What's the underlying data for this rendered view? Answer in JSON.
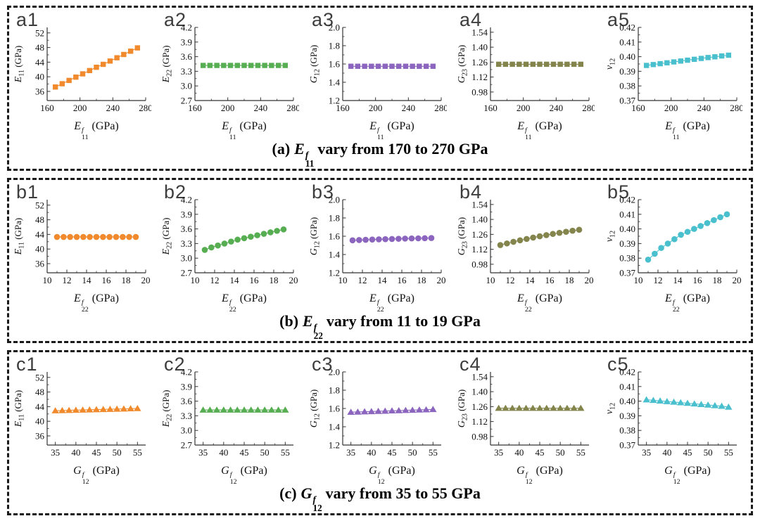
{
  "chart_data": [
    {
      "panel": "a",
      "type": "scatter",
      "marker": "square",
      "caption": {
        "prefix": "(a)",
        "var_base": "E",
        "var_sup": "f",
        "var_sub": "11",
        "rest": "vary from 170 to 270 GPa"
      },
      "xlabel": {
        "base": "E",
        "sup": "f",
        "sub": "11",
        "unit": "(GPa)"
      },
      "xlim": [
        160,
        280
      ],
      "xticks": [
        160,
        200,
        240,
        280
      ],
      "xtick_decimals": 0,
      "x": [
        170,
        178.3,
        186.7,
        195,
        203.3,
        211.7,
        220,
        228.3,
        236.7,
        245,
        253.3,
        261.7,
        270
      ],
      "subplots": [
        {
          "tag": "a1",
          "ylabel": {
            "base": "E",
            "sub": "11",
            "unit": "(GPa)"
          },
          "color": "#F08A2C",
          "ylim": [
            33.5,
            53.5
          ],
          "yticks": [
            36,
            40,
            44,
            48,
            52
          ],
          "ytick_decimals": 0,
          "y": [
            37.2,
            38.1,
            39.0,
            39.9,
            40.8,
            41.7,
            42.6,
            43.4,
            44.3,
            45.2,
            46.1,
            47.0,
            47.9
          ]
        },
        {
          "tag": "a2",
          "ylabel": {
            "base": "E",
            "sub": "22",
            "unit": "(GPa)"
          },
          "color": "#57AE52",
          "ylim": [
            2.7,
            4.2
          ],
          "yticks": [
            2.7,
            3.0,
            3.3,
            3.6,
            3.9,
            4.2
          ],
          "ytick_decimals": 1,
          "y": [
            3.42,
            3.42,
            3.42,
            3.42,
            3.42,
            3.42,
            3.42,
            3.42,
            3.42,
            3.42,
            3.42,
            3.42,
            3.42
          ]
        },
        {
          "tag": "a3",
          "ylabel": {
            "base": "G",
            "sub": "12",
            "unit": "(GPa)"
          },
          "color": "#8B65BE",
          "ylim": [
            1.2,
            2.0
          ],
          "yticks": [
            1.2,
            1.4,
            1.6,
            1.8,
            2.0
          ],
          "ytick_decimals": 1,
          "y": [
            1.575,
            1.575,
            1.575,
            1.575,
            1.575,
            1.575,
            1.575,
            1.575,
            1.575,
            1.575,
            1.575,
            1.575,
            1.575
          ]
        },
        {
          "tag": "a4",
          "ylabel": {
            "base": "G",
            "sub": "23",
            "unit": "(GPa)"
          },
          "color": "#84854D",
          "ylim": [
            0.9,
            1.585
          ],
          "yticks": [
            0.98,
            1.12,
            1.26,
            1.4,
            1.54
          ],
          "ytick_decimals": 2,
          "y": [
            1.24,
            1.24,
            1.24,
            1.24,
            1.24,
            1.24,
            1.24,
            1.24,
            1.24,
            1.24,
            1.24,
            1.24,
            1.24
          ]
        },
        {
          "tag": "a5",
          "ylabel": {
            "base": "v",
            "sub": "12",
            "unit": ""
          },
          "color": "#4AC0CE",
          "ylim": [
            0.37,
            0.42
          ],
          "yticks": [
            0.37,
            0.38,
            0.39,
            0.4,
            0.41,
            0.42
          ],
          "ytick_decimals": 2,
          "y": [
            0.394,
            0.3946,
            0.3952,
            0.3958,
            0.3964,
            0.397,
            0.3976,
            0.3982,
            0.3988,
            0.3994,
            0.3999,
            0.4005,
            0.401
          ]
        }
      ]
    },
    {
      "panel": "b",
      "type": "scatter",
      "marker": "circle",
      "caption": {
        "prefix": "(b)",
        "var_base": "E",
        "var_sup": "f",
        "var_sub": "22",
        "rest": "vary from 11 to 19 GPa"
      },
      "xlabel": {
        "base": "E",
        "sup": "f",
        "sub": "22",
        "unit": "(GPa)"
      },
      "xlim": [
        10,
        20
      ],
      "xticks": [
        10,
        12,
        14,
        16,
        18,
        20
      ],
      "xtick_decimals": 0,
      "x": [
        11,
        11.67,
        12.33,
        13,
        13.67,
        14.33,
        15,
        15.67,
        16.33,
        17,
        17.67,
        18.33,
        19
      ],
      "subplots": [
        {
          "tag": "b1",
          "ylabel": {
            "base": "E",
            "sub": "11",
            "unit": "(GPa)"
          },
          "color": "#F08A2C",
          "ylim": [
            33.5,
            53.5
          ],
          "yticks": [
            36,
            40,
            44,
            48,
            52
          ],
          "ytick_decimals": 0,
          "y": [
            43.3,
            43.3,
            43.3,
            43.3,
            43.3,
            43.3,
            43.3,
            43.3,
            43.3,
            43.3,
            43.3,
            43.3,
            43.3
          ]
        },
        {
          "tag": "b2",
          "ylabel": {
            "base": "E",
            "sub": "22",
            "unit": "(GPa)"
          },
          "color": "#57AE52",
          "ylim": [
            2.7,
            4.2
          ],
          "yticks": [
            2.7,
            3.0,
            3.3,
            3.6,
            3.9,
            4.2
          ],
          "ytick_decimals": 1,
          "y": [
            3.17,
            3.22,
            3.26,
            3.3,
            3.34,
            3.38,
            3.41,
            3.44,
            3.47,
            3.5,
            3.53,
            3.56,
            3.59
          ]
        },
        {
          "tag": "b3",
          "ylabel": {
            "base": "G",
            "sub": "12",
            "unit": "(GPa)"
          },
          "color": "#8B65BE",
          "ylim": [
            1.2,
            2.0
          ],
          "yticks": [
            1.2,
            1.4,
            1.6,
            1.8,
            2.0
          ],
          "ytick_decimals": 1,
          "y": [
            1.555,
            1.558,
            1.561,
            1.564,
            1.566,
            1.568,
            1.57,
            1.572,
            1.574,
            1.576,
            1.577,
            1.578,
            1.58
          ]
        },
        {
          "tag": "b4",
          "ylabel": {
            "base": "G",
            "sub": "23",
            "unit": "(GPa)"
          },
          "color": "#84854D",
          "ylim": [
            0.9,
            1.585
          ],
          "yticks": [
            0.98,
            1.12,
            1.26,
            1.4,
            1.54
          ],
          "ytick_decimals": 2,
          "y": [
            1.16,
            1.175,
            1.19,
            1.204,
            1.217,
            1.23,
            1.242,
            1.253,
            1.264,
            1.274,
            1.284,
            1.294,
            1.303
          ]
        },
        {
          "tag": "b5",
          "ylabel": {
            "base": "v",
            "sub": "12",
            "unit": ""
          },
          "color": "#4AC0CE",
          "ylim": [
            0.37,
            0.42
          ],
          "yticks": [
            0.37,
            0.38,
            0.39,
            0.4,
            0.41,
            0.42
          ],
          "ytick_decimals": 2,
          "y": [
            0.379,
            0.383,
            0.387,
            0.39,
            0.393,
            0.396,
            0.398,
            0.4,
            0.402,
            0.404,
            0.406,
            0.408,
            0.41
          ]
        }
      ]
    },
    {
      "panel": "c",
      "type": "scatter",
      "marker": "triangle",
      "caption": {
        "prefix": "(c)",
        "var_base": "G",
        "var_sup": "f",
        "var_sub": "12",
        "rest": "vary from 35 to 55 GPa"
      },
      "xlabel": {
        "base": "G",
        "sup": "f",
        "sub": "12",
        "unit": "(GPa)"
      },
      "xlim": [
        33,
        57
      ],
      "xticks": [
        35,
        40,
        45,
        50,
        55
      ],
      "xtick_decimals": 0,
      "x": [
        35,
        36.67,
        38.33,
        40,
        41.67,
        43.33,
        45,
        46.67,
        48.33,
        50,
        51.67,
        53.33,
        55
      ],
      "subplots": [
        {
          "tag": "c1",
          "ylabel": {
            "base": "E",
            "sub": "11",
            "unit": "(GPa)"
          },
          "color": "#F08A2C",
          "ylim": [
            33.5,
            53.5
          ],
          "yticks": [
            36,
            40,
            44,
            48,
            52
          ],
          "ytick_decimals": 0,
          "y": [
            42.9,
            42.95,
            43.0,
            43.05,
            43.1,
            43.15,
            43.2,
            43.25,
            43.3,
            43.35,
            43.4,
            43.45,
            43.5
          ]
        },
        {
          "tag": "c2",
          "ylabel": {
            "base": "E",
            "sub": "22",
            "unit": "(GPa)"
          },
          "color": "#57AE52",
          "ylim": [
            2.7,
            4.2
          ],
          "yticks": [
            2.7,
            3.0,
            3.3,
            3.6,
            3.9,
            4.2
          ],
          "ytick_decimals": 1,
          "y": [
            3.42,
            3.42,
            3.42,
            3.42,
            3.42,
            3.42,
            3.42,
            3.42,
            3.42,
            3.42,
            3.42,
            3.42,
            3.42
          ]
        },
        {
          "tag": "c3",
          "ylabel": {
            "base": "G",
            "sub": "12",
            "unit": "(GPa)"
          },
          "color": "#8B65BE",
          "ylim": [
            1.2,
            2.0
          ],
          "yticks": [
            1.2,
            1.4,
            1.6,
            1.8,
            2.0
          ],
          "ytick_decimals": 1,
          "y": [
            1.56,
            1.562,
            1.565,
            1.567,
            1.57,
            1.572,
            1.575,
            1.577,
            1.58,
            1.582,
            1.585,
            1.587,
            1.59
          ]
        },
        {
          "tag": "c4",
          "ylabel": {
            "base": "G",
            "sub": "23",
            "unit": "(GPa)"
          },
          "color": "#84854D",
          "ylim": [
            0.9,
            1.585
          ],
          "yticks": [
            0.98,
            1.12,
            1.26,
            1.4,
            1.54
          ],
          "ytick_decimals": 2,
          "y": [
            1.245,
            1.245,
            1.245,
            1.245,
            1.245,
            1.245,
            1.245,
            1.245,
            1.245,
            1.245,
            1.245,
            1.245,
            1.245
          ]
        },
        {
          "tag": "c5",
          "ylabel": {
            "base": "v",
            "sub": "12",
            "unit": ""
          },
          "color": "#4AC0CE",
          "ylim": [
            0.37,
            0.42
          ],
          "yticks": [
            0.37,
            0.38,
            0.39,
            0.4,
            0.41,
            0.42
          ],
          "ytick_decimals": 2,
          "y": [
            0.401,
            0.4006,
            0.4002,
            0.3998,
            0.3994,
            0.399,
            0.3986,
            0.3982,
            0.3978,
            0.3974,
            0.397,
            0.3966,
            0.396
          ]
        }
      ]
    }
  ]
}
